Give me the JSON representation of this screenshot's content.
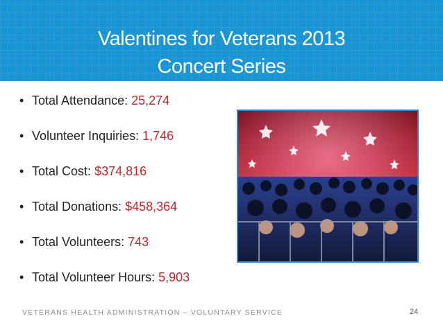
{
  "slide": {
    "title_line1": "Valentines for Veterans 2013",
    "title_line2": "Concert Series"
  },
  "bullets": [
    {
      "label": "Total Attendance:",
      "value": "25,274"
    },
    {
      "label": "Volunteer Inquiries:",
      "value": "1,746"
    },
    {
      "label": "Total Cost:",
      "value": "$374,816"
    },
    {
      "label": "Total Donations:",
      "value": "$458,364"
    },
    {
      "label": "Total Volunteers:",
      "value": "743"
    },
    {
      "label": "Total Volunteer Hours:",
      "value": "5,903"
    }
  ],
  "footer": {
    "text": "VETERANS HEALTH ADMINISTRATION – VOLUNTARY SERVICE",
    "page_number": "24"
  },
  "colors": {
    "header": "#1a95d3",
    "value_text": "#c0262a",
    "photo_border": "#3b7fc9"
  }
}
